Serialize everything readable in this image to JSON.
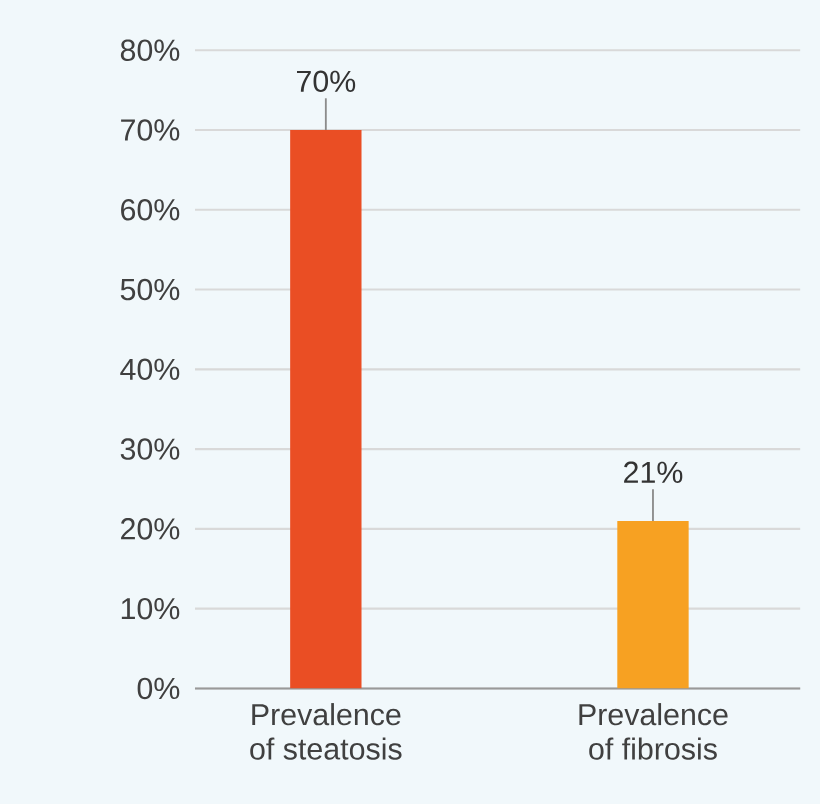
{
  "chart_data": {
    "type": "bar",
    "categories": [
      "Prevalence\nof steatosis",
      "Prevalence\nof fibrosis"
    ],
    "values": [
      70,
      21
    ],
    "colors": [
      "#ea4e24",
      "#f7a122"
    ],
    "value_labels": [
      "70%",
      "21%"
    ],
    "ylim": [
      0,
      80
    ],
    "yticks": [
      {
        "value": 0,
        "label": "0%"
      },
      {
        "value": 10,
        "label": "10%"
      },
      {
        "value": 20,
        "label": "20%"
      },
      {
        "value": 30,
        "label": "30%"
      },
      {
        "value": 40,
        "label": "40%"
      },
      {
        "value": 50,
        "label": "50%"
      },
      {
        "value": 60,
        "label": "60%"
      },
      {
        "value": 70,
        "label": "70%"
      },
      {
        "value": 80,
        "label": "80%"
      }
    ],
    "grid": "y"
  }
}
